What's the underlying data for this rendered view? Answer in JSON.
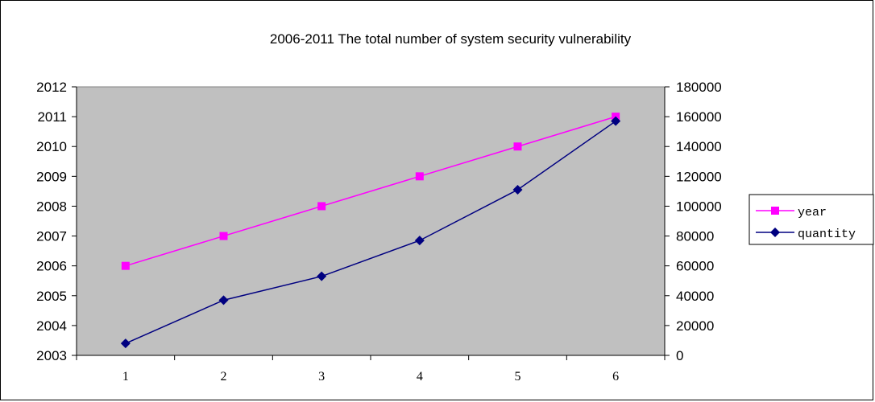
{
  "chart_data": {
    "type": "line",
    "title": "2006-2011 The total number of system security vulnerability",
    "x": [
      1,
      2,
      3,
      4,
      5,
      6
    ],
    "xticks": [
      "1",
      "2",
      "3",
      "4",
      "5",
      "6"
    ],
    "y_left": {
      "ylim": [
        2003,
        2012
      ],
      "ticks": [
        "2003",
        "2004",
        "2005",
        "2006",
        "2007",
        "2008",
        "2009",
        "2010",
        "2011",
        "2012"
      ]
    },
    "y_right": {
      "ylim": [
        0,
        180000
      ],
      "ticks": [
        "0",
        "20000",
        "40000",
        "60000",
        "80000",
        "100000",
        "120000",
        "140000",
        "160000",
        "180000"
      ]
    },
    "series": [
      {
        "name": "year",
        "axis": "left",
        "color": "#ff00ff",
        "marker": "square",
        "values": [
          2006,
          2007,
          2008,
          2009,
          2010,
          2011
        ]
      },
      {
        "name": "quantity",
        "axis": "right",
        "color": "#000080",
        "marker": "diamond",
        "values": [
          8000,
          37000,
          53000,
          77000,
          111000,
          157000
        ]
      }
    ],
    "plot_background": "#c0c0c0",
    "grid": false,
    "legend": "right"
  }
}
